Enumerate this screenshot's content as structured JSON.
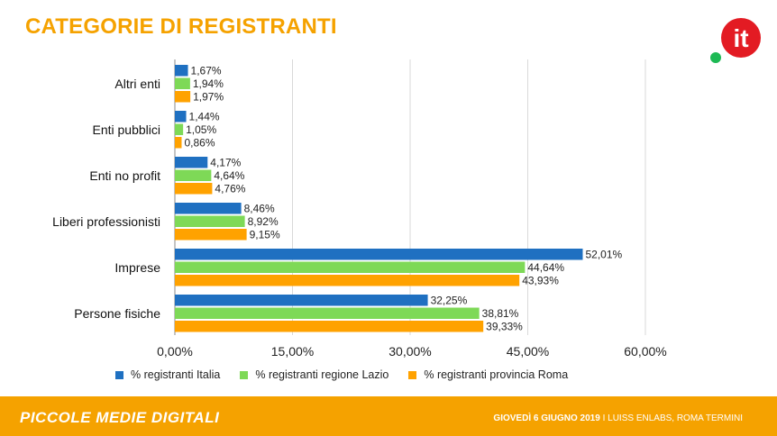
{
  "title": "CATEGORIE DI REGISTRANTI",
  "colors": {
    "accent": "#F5A200",
    "series": [
      "#1F70C1",
      "#7ED957",
      "#FFA200"
    ],
    "logo_red": "#E31B23",
    "logo_green": "#1DB954"
  },
  "logo": {
    "text": "it"
  },
  "chart_data": {
    "type": "bar",
    "orientation": "horizontal",
    "categories": [
      "Altri enti",
      "Enti pubblici",
      "Enti no profit",
      "Liberi professionisti",
      "Imprese",
      "Persone fisiche"
    ],
    "series": [
      {
        "name": "% registranti Italia",
        "values": [
          1.67,
          1.44,
          4.17,
          8.46,
          52.01,
          32.25
        ],
        "labels": [
          "1,67%",
          "1,44%",
          "4,17%",
          "8,46%",
          "52,01%",
          "32,25%"
        ]
      },
      {
        "name": "% registranti regione Lazio",
        "values": [
          1.94,
          1.05,
          4.64,
          8.92,
          44.64,
          38.81
        ],
        "labels": [
          "1,94%",
          "1,05%",
          "4,64%",
          "8,92%",
          "44,64%",
          "38,81%"
        ]
      },
      {
        "name": "% registranti provincia Roma",
        "values": [
          1.97,
          0.86,
          4.76,
          9.15,
          43.93,
          39.33
        ],
        "labels": [
          "1,97%",
          "0,86%",
          "4,76%",
          "9,15%",
          "43,93%",
          "39,33%"
        ]
      }
    ],
    "xlim": [
      0,
      75
    ],
    "xticks": [
      0,
      15,
      30,
      45,
      60
    ],
    "xtick_labels": [
      "0,00%",
      "15,00%",
      "30,00%",
      "45,00%",
      "60,00%"
    ],
    "grid": true,
    "legend_position": "bottom"
  },
  "footer": {
    "brand": "PICCOLE MEDIE DIGITALI",
    "date": "GIOVEDÌ 6 GIUGNO 2019",
    "separator": " I ",
    "location": "LUISS ENLABS, ROMA TERMINI"
  }
}
